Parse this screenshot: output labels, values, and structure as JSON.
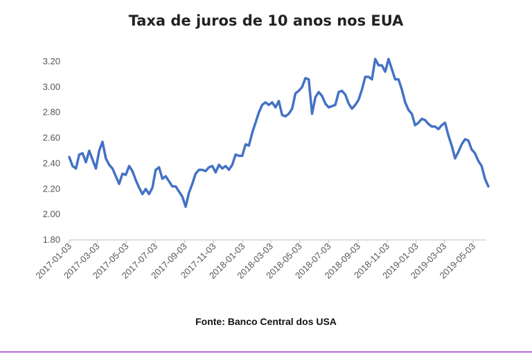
{
  "chart_data": {
    "type": "line",
    "title": "Taxa de juros de 10 anos nos EUA",
    "xlabel": "",
    "ylabel": "",
    "ylim": [
      1.8,
      3.2
    ],
    "yticks": [
      "1.80",
      "2.00",
      "2.20",
      "2.40",
      "2.60",
      "2.80",
      "3.00",
      "3.20"
    ],
    "xtick_labels": [
      "2017-01-03",
      "2017-03-03",
      "2017-05-03",
      "2017-07-03",
      "2017-09-03",
      "2017-11-03",
      "2018-01-03",
      "2018-03-03",
      "2018-05-03",
      "2018-07-03",
      "2018-09-03",
      "2018-11-03",
      "2019-01-03",
      "2019-03-03",
      "2019-05-03"
    ],
    "grid": false,
    "legend": "none",
    "series": [
      {
        "color": "#4472c4",
        "x": [
          "2017-01-03",
          "2017-01-10",
          "2017-01-17",
          "2017-01-24",
          "2017-01-31",
          "2017-02-07",
          "2017-02-14",
          "2017-02-21",
          "2017-02-28",
          "2017-03-07",
          "2017-03-14",
          "2017-03-21",
          "2017-03-28",
          "2017-04-04",
          "2017-04-11",
          "2017-04-18",
          "2017-04-25",
          "2017-05-02",
          "2017-05-09",
          "2017-05-16",
          "2017-05-23",
          "2017-05-30",
          "2017-06-06",
          "2017-06-13",
          "2017-06-20",
          "2017-06-27",
          "2017-07-04",
          "2017-07-11",
          "2017-07-18",
          "2017-07-25",
          "2017-08-01",
          "2017-08-08",
          "2017-08-15",
          "2017-08-22",
          "2017-08-29",
          "2017-09-05",
          "2017-09-12",
          "2017-09-19",
          "2017-09-26",
          "2017-10-03",
          "2017-10-10",
          "2017-10-17",
          "2017-10-24",
          "2017-10-31",
          "2017-11-07",
          "2017-11-14",
          "2017-11-21",
          "2017-11-28",
          "2017-12-05",
          "2017-12-12",
          "2017-12-19",
          "2017-12-26",
          "2018-01-02",
          "2018-01-09",
          "2018-01-16",
          "2018-01-23",
          "2018-01-30",
          "2018-02-06",
          "2018-02-13",
          "2018-02-20",
          "2018-02-27",
          "2018-03-06",
          "2018-03-13",
          "2018-03-20",
          "2018-03-27",
          "2018-04-03",
          "2018-04-10",
          "2018-04-17",
          "2018-04-24",
          "2018-05-01",
          "2018-05-08",
          "2018-05-15",
          "2018-05-22",
          "2018-05-29",
          "2018-06-05",
          "2018-06-12",
          "2018-06-19",
          "2018-06-26",
          "2018-07-03",
          "2018-07-10",
          "2018-07-17",
          "2018-07-24",
          "2018-07-31",
          "2018-08-07",
          "2018-08-14",
          "2018-08-21",
          "2018-08-28",
          "2018-09-04",
          "2018-09-11",
          "2018-09-18",
          "2018-09-25",
          "2018-10-02",
          "2018-10-09",
          "2018-10-16",
          "2018-10-23",
          "2018-10-30",
          "2018-11-06",
          "2018-11-13",
          "2018-11-20",
          "2018-11-27",
          "2018-12-04",
          "2018-12-11",
          "2018-12-18",
          "2018-12-25",
          "2019-01-01",
          "2019-01-08",
          "2019-01-15",
          "2019-01-22",
          "2019-01-29",
          "2019-02-05",
          "2019-02-12",
          "2019-02-19",
          "2019-02-26",
          "2019-03-05",
          "2019-03-12",
          "2019-03-19",
          "2019-03-26",
          "2019-04-02",
          "2019-04-09",
          "2019-04-16",
          "2019-04-23",
          "2019-04-30",
          "2019-05-07",
          "2019-05-14",
          "2019-05-21",
          "2019-05-28",
          "2019-06-04"
        ],
        "values": [
          2.45,
          2.38,
          2.36,
          2.47,
          2.48,
          2.41,
          2.5,
          2.43,
          2.36,
          2.5,
          2.57,
          2.44,
          2.39,
          2.36,
          2.3,
          2.24,
          2.32,
          2.31,
          2.38,
          2.34,
          2.27,
          2.21,
          2.16,
          2.2,
          2.16,
          2.21,
          2.35,
          2.37,
          2.28,
          2.3,
          2.26,
          2.22,
          2.22,
          2.18,
          2.14,
          2.06,
          2.17,
          2.24,
          2.32,
          2.35,
          2.35,
          2.34,
          2.37,
          2.38,
          2.33,
          2.39,
          2.36,
          2.38,
          2.35,
          2.39,
          2.47,
          2.46,
          2.46,
          2.55,
          2.54,
          2.64,
          2.72,
          2.8,
          2.86,
          2.88,
          2.86,
          2.88,
          2.84,
          2.89,
          2.78,
          2.77,
          2.79,
          2.83,
          2.95,
          2.97,
          3.0,
          3.07,
          3.06,
          2.79,
          2.92,
          2.96,
          2.93,
          2.87,
          2.84,
          2.85,
          2.86,
          2.96,
          2.97,
          2.94,
          2.87,
          2.83,
          2.86,
          2.9,
          2.98,
          3.08,
          3.08,
          3.06,
          3.22,
          3.17,
          3.17,
          3.12,
          3.22,
          3.14,
          3.06,
          3.06,
          2.98,
          2.88,
          2.82,
          2.79,
          2.7,
          2.72,
          2.75,
          2.74,
          2.71,
          2.69,
          2.69,
          2.67,
          2.7,
          2.72,
          2.62,
          2.54,
          2.44,
          2.49,
          2.55,
          2.59,
          2.58,
          2.51,
          2.48,
          2.42,
          2.38,
          2.28,
          2.22
        ]
      }
    ]
  },
  "source_note": "Fonte: Banco Central dos USA"
}
